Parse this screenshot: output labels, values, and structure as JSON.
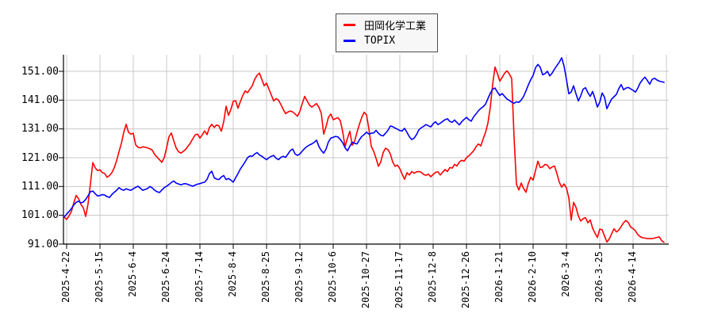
{
  "chart_data": {
    "type": "line",
    "title": "",
    "grid": true,
    "legend_position": "top-center",
    "colors": {
      "grid": "#c8c8c8",
      "axis": "#000000",
      "legend_bg": "#f7f7f7",
      "legend_border": "#4d4d4d"
    },
    "y_axis": {
      "tick_values": [
        91,
        101,
        111,
        121,
        131,
        141,
        151
      ],
      "tick_labels": [
        "91.00",
        "101.00",
        "111.00",
        "121.00",
        "131.00",
        "141.00",
        "151.00"
      ],
      "min": 91,
      "max": 156
    },
    "x_axis": {
      "tick_labels": [
        "2025-4-22",
        "2025-5-15",
        "2025-6-4",
        "2025-6-24",
        "2025-7-14",
        "2025-8-4",
        "2025-8-25",
        "2025-9-12",
        "2025-10-6",
        "2025-10-27",
        "2025-11-17",
        "2025-12-8",
        "2025-12-26",
        "2026-1-21",
        "2026-2-10",
        "2026-3-4",
        "2026-3-25",
        "2026-4-14"
      ],
      "extra_unlabeled_gridlines": 1
    },
    "series": [
      {
        "name": "田岡化学工業",
        "color": "#ff0000",
        "values": [
          100.3,
          99.6,
          100.8,
          102.3,
          105.3,
          107.9,
          106.8,
          104.8,
          103.6,
          100.6,
          105.0,
          112.0,
          119.3,
          117.5,
          116.5,
          116.8,
          115.8,
          115.5,
          114.2,
          114.8,
          115.8,
          117.5,
          120.0,
          123.1,
          126.0,
          129.8,
          132.6,
          129.8,
          129.2,
          129.5,
          125.5,
          124.6,
          124.4,
          124.8,
          124.6,
          124.4,
          124.1,
          123.6,
          122.1,
          121.2,
          120.3,
          119.4,
          121.0,
          124.4,
          128.3,
          129.6,
          126.9,
          124.4,
          123.1,
          122.6,
          123.2,
          123.9,
          125.0,
          126.1,
          127.6,
          128.9,
          129.2,
          127.8,
          129.0,
          130.3,
          129.0,
          131.5,
          132.6,
          131.5,
          132.4,
          132.0,
          130.2,
          133.5,
          138.9,
          135.7,
          137.8,
          140.6,
          140.8,
          138.2,
          140.5,
          142.6,
          144.2,
          143.6,
          144.8,
          146.0,
          148.2,
          149.6,
          150.4,
          148.2,
          146.0,
          146.9,
          144.8,
          142.8,
          140.7,
          141.5,
          141.0,
          139.5,
          137.8,
          136.3,
          136.9,
          137.2,
          136.9,
          136.2,
          135.4,
          137.1,
          139.8,
          142.3,
          140.8,
          139.3,
          138.6,
          139.2,
          139.8,
          138.5,
          136.4,
          129.2,
          131.8,
          135.0,
          136.2,
          134.2,
          134.6,
          134.9,
          133.8,
          130.0,
          124.8,
          127.8,
          130.2,
          125.3,
          126.8,
          129.8,
          132.6,
          135.0,
          136.8,
          135.9,
          131.0,
          124.9,
          123.2,
          120.8,
          118.0,
          119.6,
          122.8,
          124.3,
          123.8,
          122.3,
          119.5,
          118.0,
          118.4,
          117.2,
          115.2,
          113.5,
          115.8,
          115.0,
          116.2,
          115.6,
          116.1,
          116.2,
          115.9,
          115.2,
          114.9,
          115.3,
          114.4,
          115.2,
          115.9,
          116.1,
          115.0,
          116.0,
          116.9,
          116.2,
          117.6,
          117.4,
          118.7,
          118.1,
          119.5,
          120.1,
          119.8,
          121.0,
          121.7,
          122.5,
          123.4,
          124.8,
          125.8,
          125.1,
          127.5,
          129.8,
          133.0,
          138.5,
          146.5,
          152.5,
          150.2,
          147.6,
          148.9,
          150.3,
          151.2,
          150.1,
          148.5,
          128.0,
          111.8,
          109.8,
          112.2,
          110.3,
          109.0,
          112.1,
          114.2,
          113.2,
          116.5,
          119.8,
          117.6,
          117.8,
          118.7,
          118.4,
          117.2,
          117.8,
          118.1,
          115.5,
          112.5,
          110.8,
          111.9,
          110.5,
          107.1,
          99.3,
          105.5,
          103.8,
          100.8,
          99.0,
          99.8,
          100.2,
          98.4,
          99.4,
          96.5,
          94.8,
          93.3,
          96.2,
          96.0,
          93.8,
          91.7,
          92.8,
          94.6,
          96.3,
          95.2,
          95.9,
          97.1,
          98.4,
          99.2,
          98.5,
          96.9,
          96.4,
          95.6,
          94.3,
          93.6,
          93.2,
          93.1,
          92.9,
          92.9,
          92.9,
          93.1,
          93.3,
          93.5,
          92.2,
          91.6
        ]
      },
      {
        "name": "TOPIX",
        "color": "#0000ff",
        "values": [
          100.4,
          101.4,
          102.3,
          103.3,
          104.6,
          105.5,
          105.9,
          105.3,
          105.6,
          106.5,
          107.8,
          109.2,
          109.4,
          108.5,
          107.7,
          107.9,
          108.2,
          108.0,
          107.5,
          107.2,
          108.2,
          109.0,
          109.7,
          110.6,
          110.0,
          109.7,
          110.2,
          109.9,
          109.7,
          110.2,
          110.7,
          111.1,
          110.4,
          109.7,
          110.0,
          110.3,
          111.0,
          110.5,
          109.7,
          109.2,
          108.9,
          109.8,
          110.6,
          111.1,
          111.7,
          112.4,
          112.9,
          112.2,
          111.9,
          111.6,
          111.9,
          112.0,
          111.7,
          111.4,
          111.1,
          111.5,
          111.8,
          112.0,
          112.3,
          112.5,
          113.5,
          115.5,
          116.3,
          114.0,
          113.6,
          113.4,
          114.3,
          114.8,
          113.4,
          113.8,
          113.2,
          112.5,
          114.0,
          115.5,
          117.1,
          118.3,
          119.6,
          121.0,
          121.6,
          121.5,
          122.3,
          122.8,
          122.0,
          121.5,
          120.9,
          120.3,
          121.0,
          121.5,
          121.8,
          120.8,
          120.3,
          121.1,
          121.5,
          121.1,
          122.3,
          123.5,
          124.0,
          122.3,
          121.8,
          122.3,
          123.3,
          124.2,
          124.9,
          125.4,
          125.8,
          126.3,
          127.1,
          124.9,
          123.5,
          122.6,
          124.0,
          126.5,
          127.8,
          128.1,
          128.4,
          128.2,
          127.3,
          126.2,
          124.4,
          123.4,
          125.0,
          126.4,
          126.0,
          125.8,
          127.2,
          128.4,
          129.0,
          129.9,
          129.2,
          129.5,
          129.6,
          130.5,
          129.5,
          128.8,
          128.6,
          129.5,
          130.5,
          132.0,
          131.8,
          131.3,
          130.9,
          130.4,
          130.3,
          131.2,
          129.8,
          128.3,
          127.3,
          127.8,
          129.0,
          130.7,
          131.4,
          131.9,
          132.5,
          132.1,
          131.7,
          132.8,
          133.5,
          132.5,
          133.0,
          133.6,
          134.2,
          134.5,
          133.6,
          133.3,
          134.1,
          133.2,
          132.4,
          133.5,
          134.3,
          135.0,
          134.2,
          133.7,
          135.2,
          136.2,
          137.3,
          138.1,
          138.7,
          139.6,
          141.5,
          143.4,
          144.8,
          145.2,
          143.8,
          142.6,
          143.3,
          142.3,
          141.4,
          140.9,
          140.3,
          139.9,
          140.4,
          140.2,
          141.0,
          142.3,
          144.2,
          146.3,
          148.1,
          149.6,
          152.2,
          153.4,
          152.4,
          149.8,
          150.2,
          151.0,
          149.4,
          150.4,
          151.8,
          153.0,
          154.2,
          155.7,
          152.8,
          148.2,
          143.2,
          143.8,
          146.0,
          143.2,
          140.7,
          142.5,
          144.8,
          145.3,
          143.6,
          142.3,
          144.0,
          141.5,
          138.6,
          140.3,
          143.5,
          142.0,
          138.0,
          139.8,
          141.4,
          142.2,
          143.0,
          145.0,
          146.4,
          144.6,
          145.2,
          145.4,
          144.9,
          144.4,
          143.8,
          145.2,
          147.0,
          148.1,
          149.0,
          147.8,
          146.5,
          148.2,
          148.6,
          148.0,
          147.6,
          147.4,
          147.2
        ]
      }
    ]
  }
}
